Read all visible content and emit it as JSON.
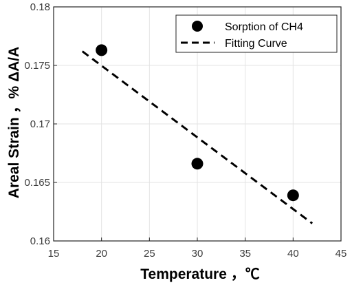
{
  "chart_data": {
    "type": "scatter",
    "xlabel": "Temperature ，℃",
    "ylabel": "Areal Strain ，% ΔA/A",
    "xlim": [
      15,
      45
    ],
    "ylim": [
      0.16,
      0.18
    ],
    "xticks": [
      15,
      20,
      25,
      30,
      35,
      40,
      45
    ],
    "yticks": [
      0.16,
      0.165,
      0.17,
      0.175,
      0.18
    ],
    "xtick_labels": [
      "15",
      "20",
      "25",
      "30",
      "35",
      "40",
      "45"
    ],
    "ytick_labels": [
      "0.16",
      "0.165",
      "0.17",
      "0.175",
      "0.18"
    ],
    "grid": true,
    "legend_position": "top-right",
    "series": [
      {
        "name": "Sorption of CH4",
        "kind": "marker",
        "color": "#000000",
        "x": [
          20,
          30,
          40
        ],
        "y": [
          0.1763,
          0.1666,
          0.1639
        ]
      },
      {
        "name": "Fitting Curve",
        "kind": "dashed-line",
        "color": "#000000",
        "x": [
          18,
          42
        ],
        "y": [
          0.1762,
          0.1615
        ]
      }
    ]
  }
}
